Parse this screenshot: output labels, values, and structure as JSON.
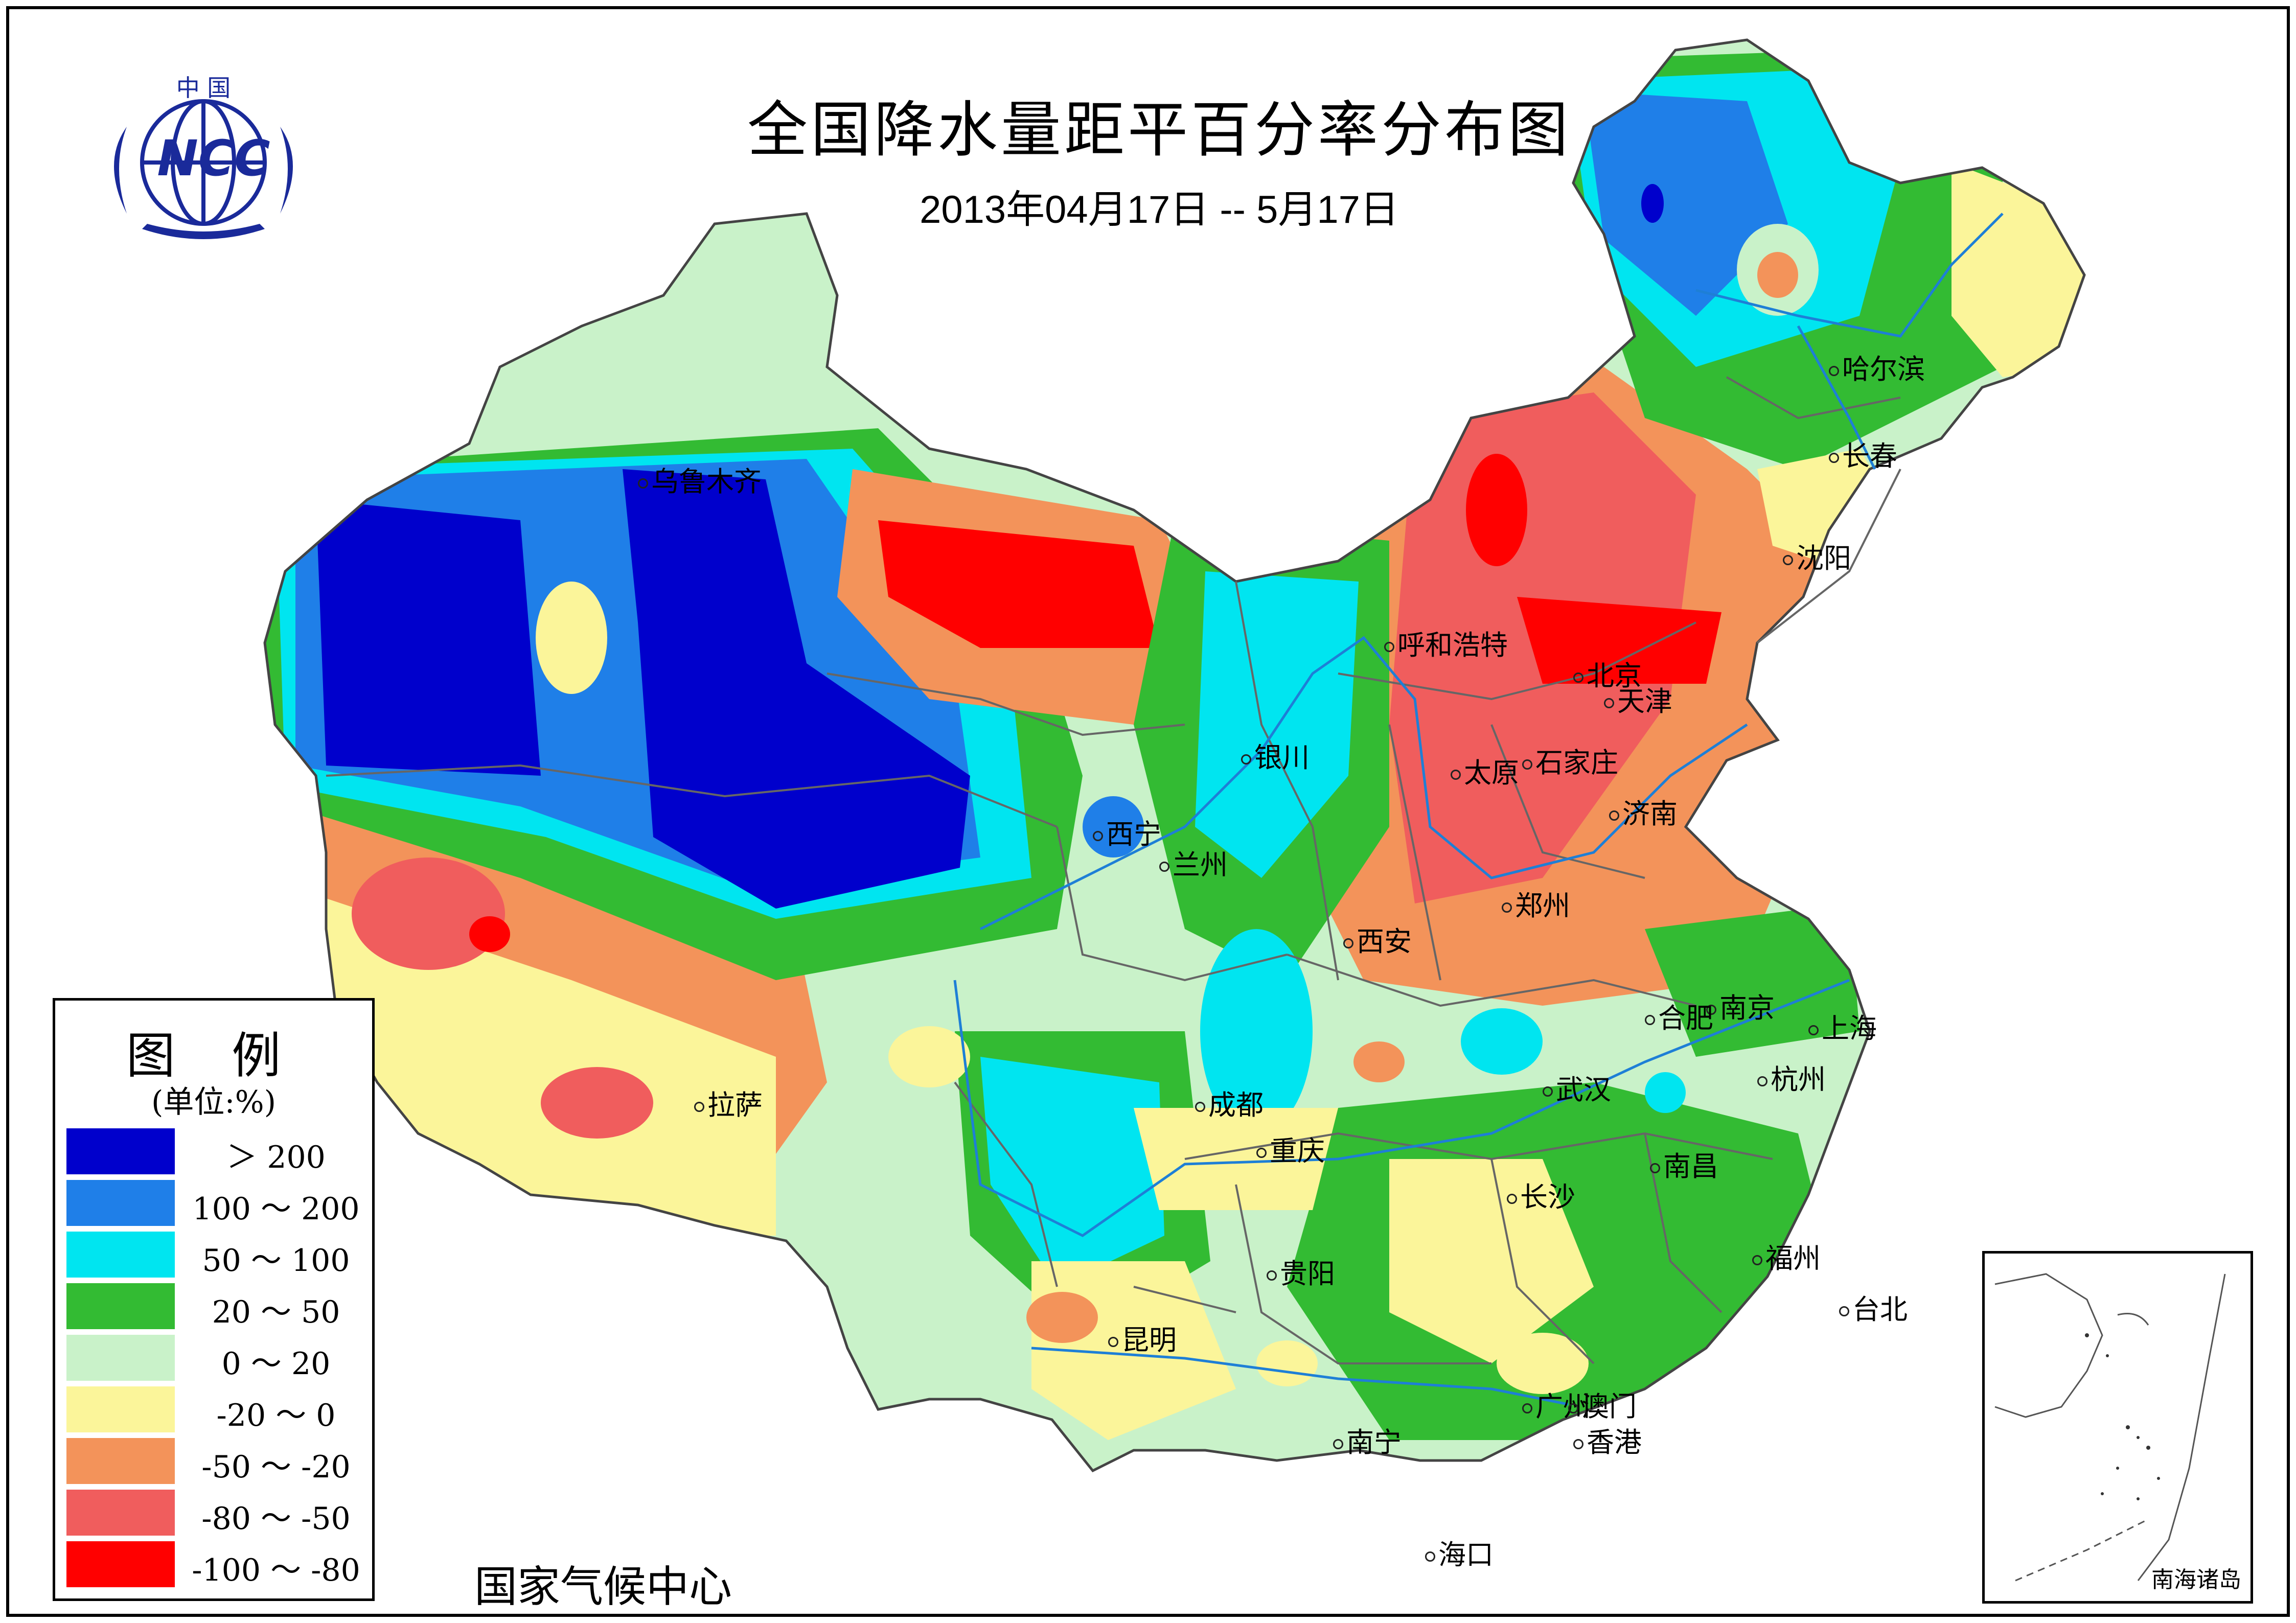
{
  "header": {
    "title": "全国降水量距平百分率分布图",
    "date_range": "2013年04月17日 -- 5月17日"
  },
  "logo": {
    "top_text": "中 国",
    "acronym": "NCC"
  },
  "legend": {
    "title": "图 例",
    "unit": "(单位:%)",
    "items": [
      {
        "label": "＞ 200",
        "color": "#0000cc"
      },
      {
        "label": "100 ～ 200",
        "color": "#1f7fe8"
      },
      {
        "label": "50 ～ 100",
        "color": "#00e5f0"
      },
      {
        "label": "20 ～ 50",
        "color": "#33bb33"
      },
      {
        "label": "0 ～ 20",
        "color": "#c9f2c9"
      },
      {
        "label": "-20 ～ 0",
        "color": "#fbf59a"
      },
      {
        "label": "-50 ～ -20",
        "color": "#f3935a"
      },
      {
        "label": "-80 ～ -50",
        "color": "#f05d5d"
      },
      {
        "label": "-100 ～ -80",
        "color": "#ff0000"
      }
    ]
  },
  "agency": "国家气候中心",
  "inset": {
    "label": "南海诸岛"
  },
  "cities": [
    {
      "name": "乌鲁木齐"
    },
    {
      "name": "哈尔滨"
    },
    {
      "name": "长春"
    },
    {
      "name": "沈阳"
    },
    {
      "name": "呼和浩特"
    },
    {
      "name": "北京"
    },
    {
      "name": "天津"
    },
    {
      "name": "银川"
    },
    {
      "name": "太原"
    },
    {
      "name": "石家庄"
    },
    {
      "name": "济南"
    },
    {
      "name": "西宁"
    },
    {
      "name": "兰州"
    },
    {
      "name": "郑州"
    },
    {
      "name": "西安"
    },
    {
      "name": "南京"
    },
    {
      "name": "合肥"
    },
    {
      "name": "上海"
    },
    {
      "name": "拉萨"
    },
    {
      "name": "成都"
    },
    {
      "name": "武汉"
    },
    {
      "name": "杭州"
    },
    {
      "name": "重庆"
    },
    {
      "name": "南昌"
    },
    {
      "name": "长沙"
    },
    {
      "name": "福州"
    },
    {
      "name": "贵阳"
    },
    {
      "name": "台北"
    },
    {
      "name": "昆明"
    },
    {
      "name": "广州"
    },
    {
      "name": "澳门"
    },
    {
      "name": "香港"
    },
    {
      "name": "南宁"
    },
    {
      "name": "海口"
    }
  ]
}
